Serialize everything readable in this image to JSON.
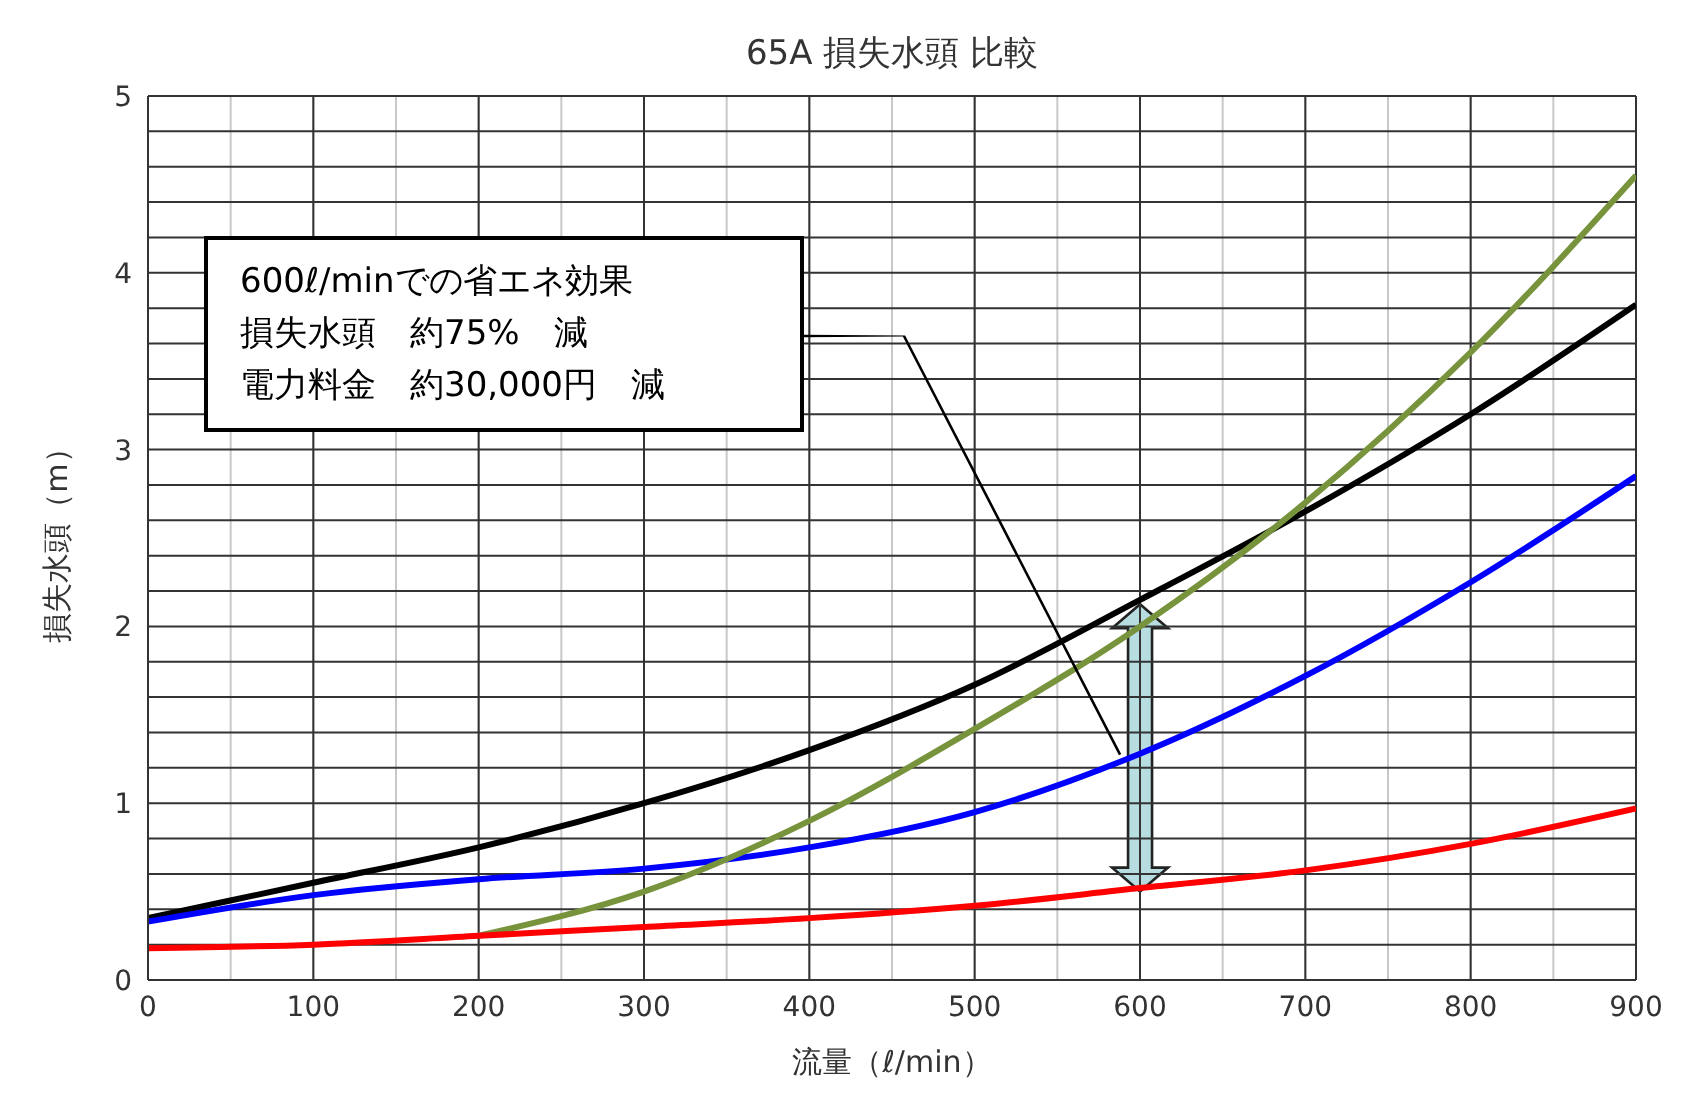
{
  "chart_data": {
    "type": "line",
    "title": "65A  損失水頭  比較",
    "xlabel": "流量（ℓ/min）",
    "ylabel": "損失水頭（m）",
    "x": [
      0,
      100,
      200,
      300,
      400,
      500,
      600,
      700,
      800,
      900
    ],
    "series": [
      {
        "color": "#000000",
        "values": [
          0.35,
          0.55,
          0.75,
          1.0,
          1.3,
          1.67,
          2.15,
          2.65,
          3.2,
          3.82
        ]
      },
      {
        "color": "#0000ff",
        "values": [
          0.33,
          0.48,
          0.57,
          0.63,
          0.75,
          0.95,
          1.28,
          1.72,
          2.25,
          2.85
        ]
      },
      {
        "color": "#77933c",
        "values": [
          null,
          null,
          0.25,
          0.5,
          0.9,
          1.42,
          2.0,
          2.7,
          3.55,
          4.55
        ]
      },
      {
        "color": "#ff0000",
        "values": [
          0.18,
          0.2,
          0.25,
          0.3,
          0.35,
          0.42,
          0.52,
          0.62,
          0.77,
          0.97
        ]
      }
    ],
    "xlim": [
      0,
      900
    ],
    "xticks": [
      0,
      100,
      200,
      300,
      400,
      500,
      600,
      700,
      800,
      900
    ],
    "ylim": [
      0,
      5
    ],
    "yticks": [
      0,
      1,
      2,
      3,
      4,
      5
    ],
    "grid": true,
    "marker": "none",
    "line_style": "solid",
    "annotations": [
      "600ℓ/minでの省エネ効果",
      "損失水頭　約75%　減",
      "電力料金　約30,000円　減"
    ]
  }
}
